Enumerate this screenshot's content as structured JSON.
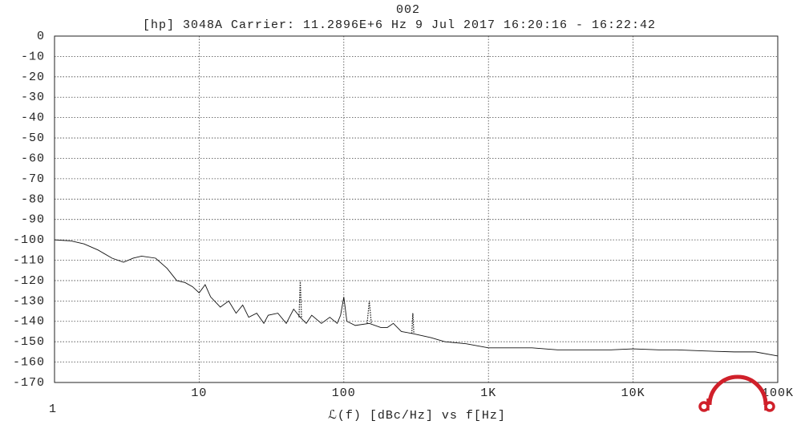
{
  "chart_data": {
    "type": "line",
    "title": "002",
    "subtitle": "[hp] 3048A  Carrier: 11.2896E+6 Hz  9 Jul 2017  16:20:16 - 16:22:42",
    "xlabel": "ℒ(f) [dBc/Hz] vs f[Hz]",
    "xscale": "log",
    "xlim": [
      1,
      100000
    ],
    "xticks": [
      1,
      10,
      100,
      {
        "value": 1000,
        "label": "1K"
      },
      {
        "value": 10000,
        "label": "10K"
      },
      {
        "value": 100000,
        "label": "100K"
      }
    ],
    "ylim": [
      -170,
      0
    ],
    "yticks": [
      0,
      -10,
      -20,
      -30,
      -40,
      -50,
      -60,
      -70,
      -80,
      -90,
      -100,
      -110,
      -120,
      -130,
      -140,
      -150,
      -160,
      -170
    ],
    "grid": true,
    "series": [
      {
        "color": "#111111",
        "dashed": false,
        "x": [
          1,
          1.3,
          1.6,
          2,
          2.5,
          3,
          3.5,
          4,
          5,
          6,
          7,
          8,
          9,
          10,
          11,
          12,
          14,
          16,
          18,
          20,
          22,
          25,
          28,
          30,
          35,
          40,
          45,
          50,
          55,
          60,
          70,
          80,
          90,
          95,
          100,
          105,
          120,
          150,
          180,
          200,
          220,
          250,
          300,
          400,
          500,
          700,
          1000,
          1500,
          2000,
          3000,
          5000,
          7000,
          10000,
          15000,
          20000,
          30000,
          50000,
          70000,
          100000
        ],
        "values": [
          -100,
          -100.5,
          -102,
          -105,
          -109,
          -111,
          -109,
          -108,
          -109,
          -114,
          -120,
          -121,
          -123,
          -126,
          -122,
          -128,
          -133,
          -130,
          -136,
          -132,
          -138,
          -136,
          -141,
          -137,
          -136,
          -141,
          -134,
          -138,
          -141,
          -137,
          -141,
          -138,
          -141,
          -137,
          -128,
          -140,
          -142,
          -141,
          -143,
          -143,
          -141,
          -145,
          -146,
          -148,
          -150,
          -151,
          -153,
          -153,
          -153,
          -154,
          -154,
          -154,
          -153.5,
          -154,
          -154,
          -154.5,
          -155,
          -155,
          -157
        ]
      },
      {
        "color": "#111111",
        "dashed": true,
        "x": [
          49,
          50,
          51,
          null,
          145,
          150,
          155,
          null,
          295,
          300,
          305
        ],
        "values": [
          -138,
          -120,
          -138,
          null,
          -141,
          -130,
          -141,
          null,
          -146,
          -136,
          -146
        ]
      }
    ]
  }
}
